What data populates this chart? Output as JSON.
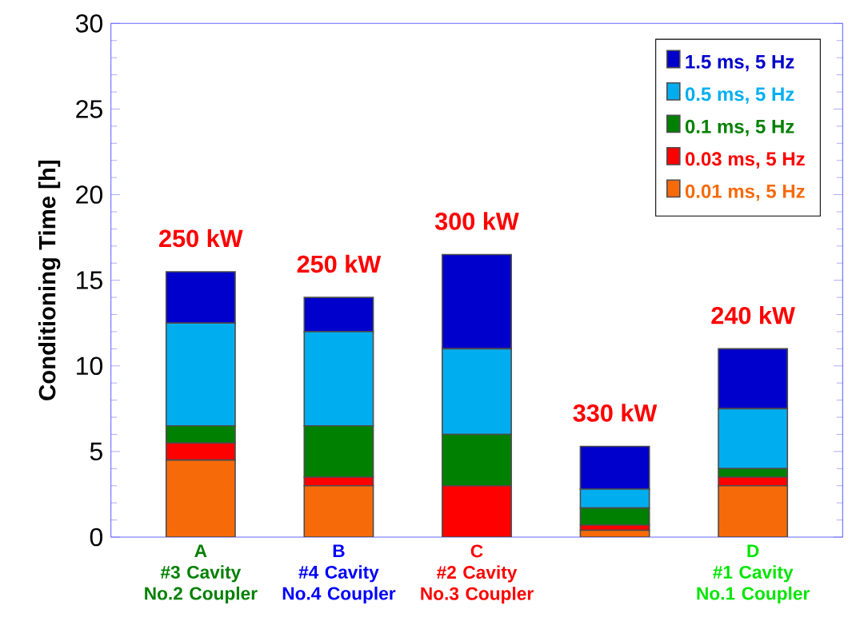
{
  "chart_data": {
    "type": "bar",
    "stacked": true,
    "ylabel": "Conditioning Time  [h]",
    "categories": [
      "A\n#3 Cavity\nNo.2 Coupler",
      "B\n#4 Cavity\nNo.4 Coupler",
      "C\n#2 Cavity\nNo.3 Coupler",
      null,
      "D\n#1 Cavity\nNo.1 Coupler"
    ],
    "ylim": [
      0,
      30
    ],
    "yticks": [
      0,
      5,
      10,
      15,
      20,
      25,
      30
    ],
    "legend": "top right",
    "series": [
      {
        "name": "0.01 ms, 5 Hz",
        "color": "#f76a0a",
        "values": [
          4.5,
          3.0,
          0,
          0.4,
          3.0
        ]
      },
      {
        "name": "0.03 ms, 5 Hz",
        "color": "#ff0000",
        "values": [
          1.0,
          0.5,
          3.0,
          0.3,
          0.5
        ]
      },
      {
        "name": "0.1 ms, 5 Hz",
        "color": "#008000",
        "values": [
          1.0,
          3.0,
          3.0,
          1.0,
          0.5
        ]
      },
      {
        "name": "0.5 ms, 5 Hz",
        "color": "#00aeef",
        "values": [
          6.0,
          5.5,
          5.0,
          1.1,
          3.5
        ]
      },
      {
        "name": "1.5 ms, 5 Hz",
        "color": "#0000cc",
        "values": [
          3.0,
          2.0,
          5.5,
          2.5,
          3.5
        ]
      }
    ],
    "annotations": [
      "250 kW",
      "250 kW",
      "300 kW",
      "330 kW",
      "240 kW"
    ]
  }
}
